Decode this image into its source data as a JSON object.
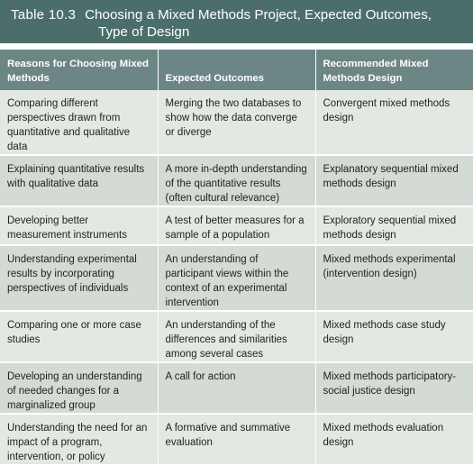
{
  "title": {
    "number": "Table 10.3",
    "line1": "Choosing a Mixed Methods Project, Expected Outcomes,",
    "line2": "Type of Design"
  },
  "headers": [
    "Reasons for Choosing Mixed Methods",
    "Expected Outcomes",
    "Recommended Mixed Methods Design"
  ],
  "rows": [
    {
      "reason": "Comparing different perspectives drawn from quantitative and qualitative data",
      "outcome": "Merging the two databases to show how the data converge or diverge",
      "design": "Convergent mixed methods design"
    },
    {
      "reason": "Explaining quantitative results with qualitative data",
      "outcome": "A more in-depth understanding of the quantitative results (often cultural relevance)",
      "design": "Explanatory sequential mixed methods design"
    },
    {
      "reason": "Developing better measurement instruments",
      "outcome": "A test of better measures for a sample of a population",
      "design": "Exploratory sequential mixed methods design"
    },
    {
      "reason": "Understanding experimental results by incorporating perspectives of individuals",
      "outcome": "An understanding of participant views within the context of an experimental intervention",
      "design": "Mixed methods experimental (intervention design)"
    },
    {
      "reason": "Comparing one or more case studies",
      "outcome": "An understanding of the differences and similarities among several cases",
      "design": "Mixed methods case study design"
    },
    {
      "reason": "Developing an understanding of needed changes for a marginalized group",
      "outcome": "A call for action",
      "design": "Mixed methods participatory-social justice design"
    },
    {
      "reason": "Understanding the need for an impact of a program, intervention, or policy",
      "outcome": "A formative and summative evaluation",
      "design": "Mixed methods evaluation design"
    }
  ],
  "colors": {
    "title_bg": "#4b6e6b",
    "header_bg": "#6b8684",
    "row_light": "#e4e8e2",
    "row_dark": "#d3dbd4"
  }
}
